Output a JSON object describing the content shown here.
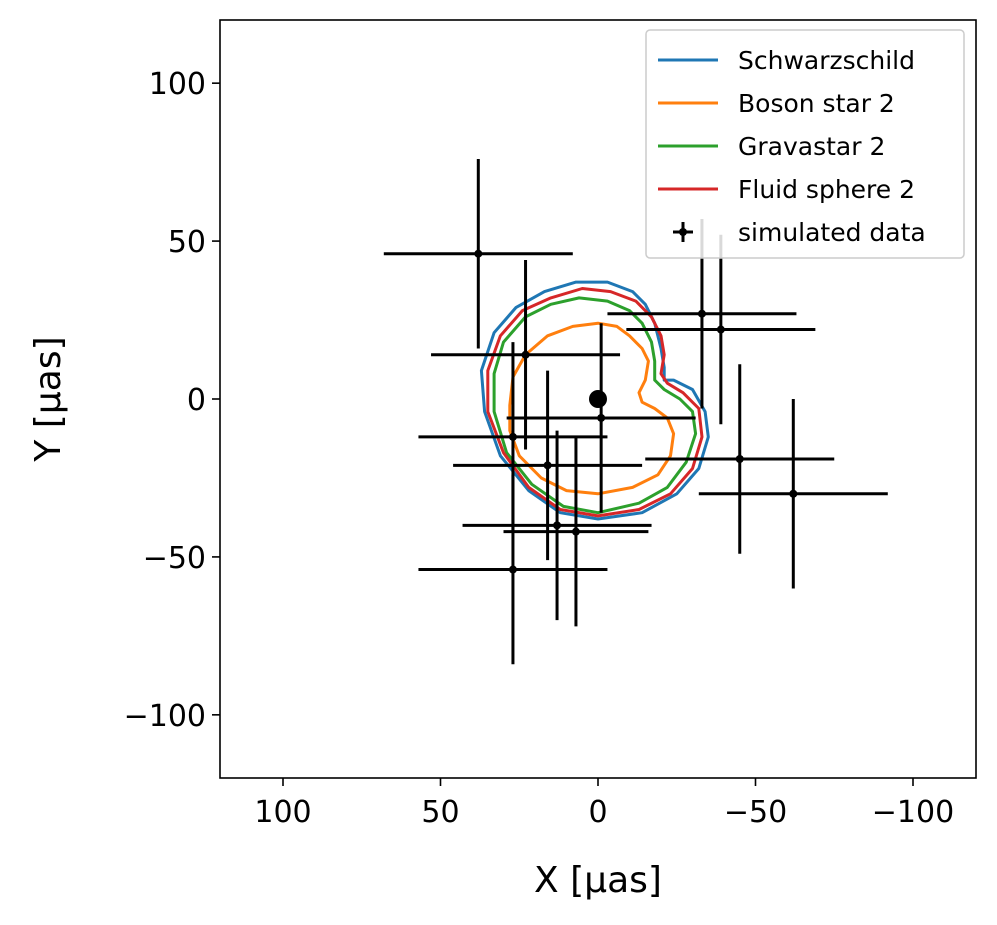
{
  "chart_data": {
    "type": "scatter",
    "xlabel": "X [μas]",
    "ylabel": "Y [μas]",
    "xlim": [
      120,
      -120
    ],
    "ylim": [
      -120,
      120
    ],
    "x_ticks": [
      "100",
      "50",
      "0",
      "−50",
      "−100"
    ],
    "x_tick_values": [
      100,
      50,
      0,
      -50,
      -100
    ],
    "y_ticks": [
      "100",
      "50",
      "0",
      "−50",
      "−100"
    ],
    "y_tick_values": [
      100,
      50,
      0,
      -50,
      -100
    ],
    "grid": false,
    "legend_position": "top-right",
    "legend": [
      "Schwarzschild",
      "Boson star 2",
      "Gravastar 2",
      "Fluid sphere 2",
      "simulated data"
    ],
    "center_marker": {
      "x": 0,
      "y": 0
    },
    "series": [
      {
        "name": "Schwarzschild",
        "color": "#1f77b4",
        "kind": "closed-curve",
        "points": [
          [
            0,
            -38
          ],
          [
            12,
            -36
          ],
          [
            22,
            -29
          ],
          [
            31,
            -18
          ],
          [
            36,
            -4
          ],
          [
            37,
            9
          ],
          [
            33,
            21
          ],
          [
            26,
            29
          ],
          [
            17,
            34
          ],
          [
            7,
            37
          ],
          [
            -3,
            37
          ],
          [
            -11,
            34
          ],
          [
            -15,
            30
          ],
          [
            -18,
            24
          ],
          [
            -20,
            16
          ],
          [
            -21,
            10
          ],
          [
            -21,
            6
          ],
          [
            -24,
            6
          ],
          [
            -30,
            3
          ],
          [
            -34,
            -4
          ],
          [
            -35,
            -12
          ],
          [
            -32,
            -22
          ],
          [
            -25,
            -30
          ],
          [
            -14,
            -36
          ]
        ]
      },
      {
        "name": "Boson star 2",
        "color": "#ff7f0e",
        "kind": "closed-curve",
        "points": [
          [
            0,
            -30
          ],
          [
            10,
            -29
          ],
          [
            18,
            -25
          ],
          [
            25,
            -18
          ],
          [
            28,
            -10
          ],
          [
            28,
            -2
          ],
          [
            27,
            7
          ],
          [
            23,
            14
          ],
          [
            16,
            20
          ],
          [
            8,
            23
          ],
          [
            0,
            24
          ],
          [
            -6,
            23
          ],
          [
            -10,
            20
          ],
          [
            -14,
            16
          ],
          [
            -16,
            12
          ],
          [
            -15,
            6
          ],
          [
            -13,
            2
          ],
          [
            -14,
            -1
          ],
          [
            -18,
            -3
          ],
          [
            -22,
            -6
          ],
          [
            -24,
            -11
          ],
          [
            -23,
            -18
          ],
          [
            -19,
            -24
          ],
          [
            -11,
            -28
          ]
        ]
      },
      {
        "name": "Gravastar 2",
        "color": "#2ca02c",
        "kind": "closed-curve",
        "points": [
          [
            0,
            -36
          ],
          [
            11,
            -34
          ],
          [
            21,
            -27
          ],
          [
            29,
            -17
          ],
          [
            33,
            -4
          ],
          [
            33,
            8
          ],
          [
            30,
            18
          ],
          [
            23,
            26
          ],
          [
            15,
            30
          ],
          [
            6,
            32
          ],
          [
            -3,
            31
          ],
          [
            -10,
            28
          ],
          [
            -14,
            24
          ],
          [
            -17,
            18
          ],
          [
            -18,
            12
          ],
          [
            -18,
            6
          ],
          [
            -21,
            3
          ],
          [
            -26,
            0
          ],
          [
            -30,
            -4
          ],
          [
            -31,
            -11
          ],
          [
            -28,
            -20
          ],
          [
            -22,
            -28
          ],
          [
            -13,
            -33
          ]
        ]
      },
      {
        "name": "Fluid sphere 2",
        "color": "#d62728",
        "kind": "closed-curve",
        "points": [
          [
            0,
            -37
          ],
          [
            12,
            -35
          ],
          [
            22,
            -28
          ],
          [
            30,
            -17
          ],
          [
            35,
            -4
          ],
          [
            35,
            9
          ],
          [
            31,
            20
          ],
          [
            24,
            28
          ],
          [
            15,
            32
          ],
          [
            5,
            35
          ],
          [
            -4,
            34
          ],
          [
            -12,
            31
          ],
          [
            -17,
            26
          ],
          [
            -20,
            20
          ],
          [
            -21,
            14
          ],
          [
            -20,
            8
          ],
          [
            -22,
            5
          ],
          [
            -27,
            2
          ],
          [
            -32,
            -3
          ],
          [
            -33,
            -12
          ],
          [
            -30,
            -22
          ],
          [
            -23,
            -30
          ],
          [
            -13,
            -35
          ]
        ]
      },
      {
        "name": "simulated data",
        "color": "#000000",
        "kind": "errorbar",
        "points": [
          {
            "x": 38,
            "y": 46,
            "xerr": 30,
            "yerr": 30
          },
          {
            "x": 23,
            "y": 14,
            "xerr": 30,
            "yerr": 30
          },
          {
            "x": 27,
            "y": -12,
            "xerr": 30,
            "yerr": 30
          },
          {
            "x": 16,
            "y": -21,
            "xerr": 30,
            "yerr": 30
          },
          {
            "x": 13,
            "y": -40,
            "xerr": 30,
            "yerr": 30
          },
          {
            "x": 7,
            "y": -42,
            "xerr": 23,
            "yerr": 30
          },
          {
            "x": 27,
            "y": -54,
            "xerr": 30,
            "yerr": 30
          },
          {
            "x": -1,
            "y": -6,
            "xerr": 30,
            "yerr": 30
          },
          {
            "x": -33,
            "y": 27,
            "xerr": 30,
            "yerr": 30
          },
          {
            "x": -39,
            "y": 22,
            "xerr": 30,
            "yerr": 30
          },
          {
            "x": -45,
            "y": -19,
            "xerr": 30,
            "yerr": 30
          },
          {
            "x": -62,
            "y": -30,
            "xerr": 30,
            "yerr": 30
          }
        ]
      }
    ]
  }
}
